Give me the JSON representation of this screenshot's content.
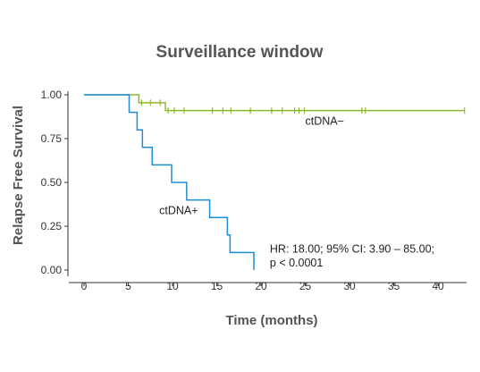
{
  "chart_data": {
    "type": "line",
    "subtype": "kaplan-meier",
    "title": "Surveillance window",
    "xlabel": "Time (months)",
    "ylabel": "Relapse Free Survival",
    "xlim": [
      0,
      43
    ],
    "ylim": [
      0,
      1
    ],
    "x_ticks": [
      0,
      5,
      10,
      15,
      20,
      25,
      30,
      35,
      40
    ],
    "y_ticks": [
      0.0,
      0.25,
      0.5,
      0.75,
      1.0
    ],
    "x_tick_labels": [
      "0",
      "5",
      "10",
      "15",
      "20",
      "25",
      "30",
      "35",
      "40"
    ],
    "y_tick_labels": [
      "0.00",
      "0.25",
      "0.50",
      "0.75",
      "1.00"
    ],
    "grid": false,
    "series": [
      {
        "name": "ctDNA−",
        "color": "#8db82a",
        "steps": [
          [
            0,
            1.0
          ],
          [
            6.2,
            0.955
          ],
          [
            9.2,
            0.91
          ],
          [
            43,
            0.91
          ]
        ],
        "censored": [
          6.5,
          7.5,
          8.6,
          9.5,
          10.2,
          11.3,
          14.5,
          15.7,
          16.6,
          18.8,
          21.2,
          22.4,
          23.8,
          24.3,
          24.9,
          31.4,
          31.8,
          43
        ]
      },
      {
        "name": "ctDNA+",
        "color": "#1f8dd6",
        "steps": [
          [
            0,
            1.0
          ],
          [
            5.1,
            0.9
          ],
          [
            6.0,
            0.8
          ],
          [
            6.6,
            0.7
          ],
          [
            7.7,
            0.6
          ],
          [
            9.9,
            0.5
          ],
          [
            11.6,
            0.4
          ],
          [
            14.2,
            0.3
          ],
          [
            16.2,
            0.2
          ],
          [
            16.5,
            0.1
          ],
          [
            19.2,
            0.0
          ]
        ],
        "censored": []
      }
    ],
    "annotations": [
      {
        "text": "ctDNA−",
        "x": 25,
        "y": 0.83
      },
      {
        "text": "ctDNA+",
        "x": 8.5,
        "y": 0.32
      },
      {
        "text": "HR: 18.00; 95% CI: 3.90 – 85.00;",
        "x": 21,
        "y": 0.1
      },
      {
        "text": "p < 0.0001",
        "x": 21,
        "y": 0.02
      }
    ]
  }
}
